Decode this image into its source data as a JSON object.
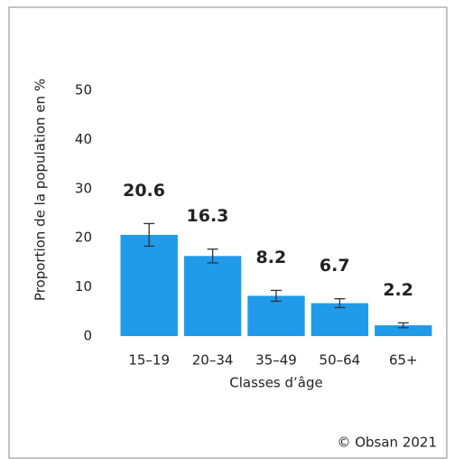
{
  "chart_data": {
    "type": "bar",
    "categories": [
      "15–19",
      "20–34",
      "35–49",
      "50–64",
      "65+"
    ],
    "values": [
      20.6,
      16.3,
      8.2,
      6.7,
      2.2
    ],
    "errors": [
      2.3,
      1.4,
      1.1,
      0.9,
      0.5
    ],
    "color": "#1f9bea",
    "ylim": [
      0,
      50
    ],
    "yticks": [
      0,
      10,
      20,
      30,
      40,
      50
    ],
    "ylabel": "Proportion de la population en %",
    "xlabel": "Classes d’âge",
    "source": "© Obsan 2021",
    "grid": false
  }
}
